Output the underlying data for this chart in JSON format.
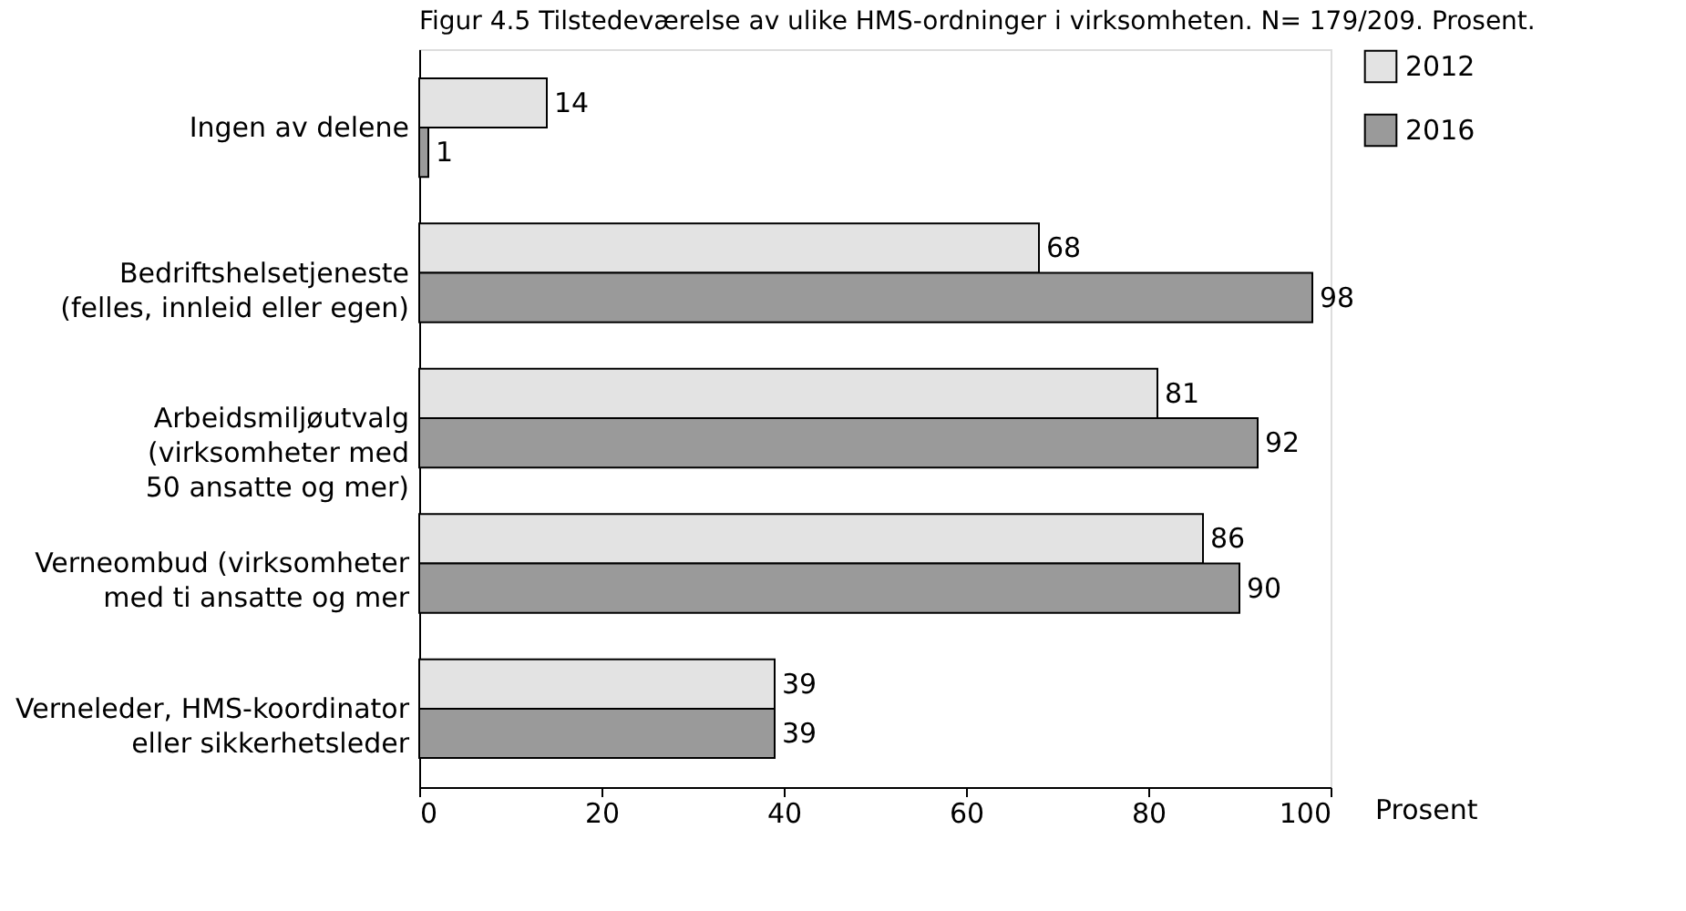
{
  "chart_data": {
    "type": "bar",
    "orientation": "horizontal",
    "title": "Figur 4.5 Tilstedeværelse av ulike HMS-ordninger i virksomheten. N= 179/209. Prosent.",
    "categories": [
      "Ingen av delene",
      "Bedriftshelsetjeneste\n(felles, innleid eller egen)",
      "Arbeidsmiljøutvalg\n(virksomheter med\n50 ansatte og mer)",
      "Verneombud (virksomheter\nmed ti ansatte og mer",
      "Verneleder, HMS-koordinator\neller sikkerhetsleder"
    ],
    "series": [
      {
        "name": "2012",
        "color": "#e3e3e3",
        "values": [
          14,
          68,
          81,
          86,
          39
        ]
      },
      {
        "name": "2016",
        "color": "#9a9a9a",
        "values": [
          1,
          98,
          92,
          90,
          39
        ]
      }
    ],
    "xlabel": "Prosent",
    "xlim": [
      0,
      100
    ],
    "xticks": [
      0,
      20,
      40,
      60,
      80,
      100
    ],
    "data_labels": true,
    "legend": "top right",
    "grid": false
  }
}
